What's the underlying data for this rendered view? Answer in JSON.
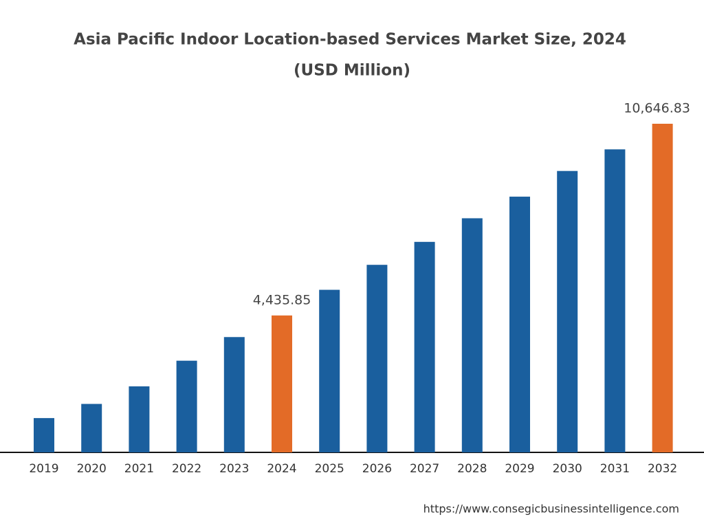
{
  "chart_data": {
    "type": "bar",
    "title": "Asia Pacific Indoor Location-based Services Market Size, 2024",
    "subtitle": "(USD Million)",
    "categories": [
      "2019",
      "2020",
      "2021",
      "2022",
      "2023",
      "2024",
      "2025",
      "2026",
      "2027",
      "2028",
      "2029",
      "2030",
      "2031",
      "2032"
    ],
    "values": [
      1111,
      1570,
      2139,
      2970,
      3736,
      4435.85,
      5267,
      6076,
      6820,
      7585,
      8285,
      9117,
      9817,
      10646.83
    ],
    "value_labels": [
      null,
      null,
      null,
      null,
      null,
      "4,435.85",
      null,
      null,
      null,
      null,
      null,
      null,
      null,
      "10,646.83"
    ],
    "colors": [
      "#1a5f9e",
      "#1a5f9e",
      "#1a5f9e",
      "#1a5f9e",
      "#1a5f9e",
      "#e36b27",
      "#1a5f9e",
      "#1a5f9e",
      "#1a5f9e",
      "#1a5f9e",
      "#1a5f9e",
      "#1a5f9e",
      "#1a5f9e",
      "#e36b27"
    ],
    "source": "https://www.consegicbusinessintelligence.com"
  }
}
